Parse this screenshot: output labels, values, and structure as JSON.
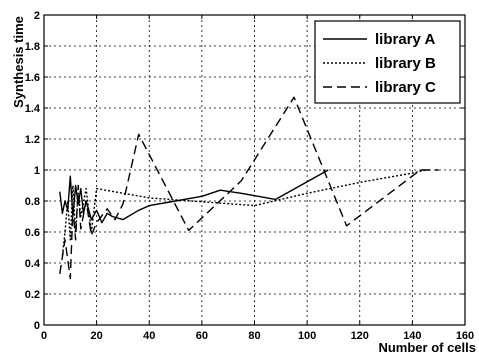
{
  "chart_data": {
    "type": "line",
    "xlabel": "Number of cells",
    "ylabel": "Synthesis time",
    "xlim": [
      0,
      160
    ],
    "ylim": [
      0,
      2
    ],
    "xticks": [
      "0",
      "20",
      "40",
      "60",
      "80",
      "100",
      "120",
      "140",
      "160"
    ],
    "yticks": [
      "0",
      "0.2",
      "0.4",
      "0.6",
      "0.8",
      "1",
      "1.2",
      "1.4",
      "1.6",
      "1.8",
      "2"
    ],
    "grid": true,
    "legend_position": "top-right",
    "series": [
      {
        "name": "library A",
        "style": "solid",
        "x": [
          6,
          7,
          8,
          9,
          10,
          11,
          12,
          13,
          14,
          15,
          16,
          18,
          20,
          22,
          24,
          26,
          30,
          36,
          40,
          50,
          60,
          67,
          75,
          88,
          108
        ],
        "y": [
          0.86,
          0.72,
          0.8,
          0.74,
          0.96,
          0.7,
          0.9,
          0.78,
          0.88,
          0.72,
          0.8,
          0.68,
          0.74,
          0.66,
          0.72,
          0.7,
          0.68,
          0.74,
          0.77,
          0.8,
          0.83,
          0.87,
          0.85,
          0.81,
          1.0
        ]
      },
      {
        "name": "library B",
        "style": "dotted",
        "x": [
          7,
          8,
          9,
          10,
          11,
          12,
          13,
          14,
          16,
          18,
          20,
          40,
          80,
          100,
          120,
          140,
          145
        ],
        "y": [
          0.45,
          0.6,
          0.8,
          0.55,
          0.9,
          0.6,
          0.85,
          0.7,
          0.88,
          0.6,
          0.88,
          0.82,
          0.77,
          0.85,
          0.92,
          0.98,
          1.0
        ]
      },
      {
        "name": "library C",
        "style": "dashed",
        "x": [
          6,
          8,
          10,
          11,
          12,
          13,
          14,
          16,
          18,
          20,
          24,
          27,
          30,
          36,
          55,
          75,
          95,
          115,
          143,
          150
        ],
        "y": [
          0.33,
          0.55,
          0.3,
          0.75,
          0.55,
          0.9,
          0.62,
          0.8,
          0.58,
          0.66,
          0.75,
          0.68,
          0.78,
          1.23,
          0.61,
          0.93,
          1.47,
          0.64,
          1.0,
          1.0
        ]
      }
    ]
  }
}
